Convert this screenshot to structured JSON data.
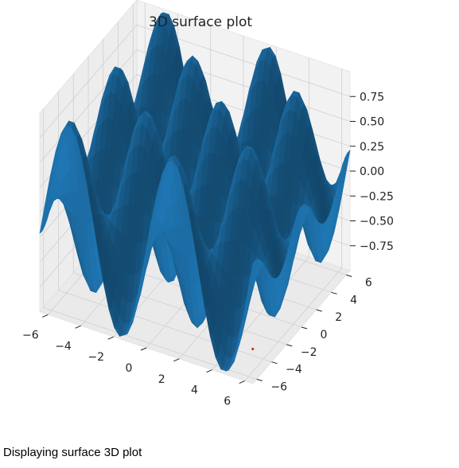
{
  "chart_data": {
    "type": "surface",
    "title": "3D surface plot",
    "function": "sin(x) * cos(y)",
    "x_range": [
      -6.5,
      6.5
    ],
    "y_range": [
      -6.5,
      6.5
    ],
    "z_range": [
      -1,
      1
    ],
    "x_ticks": [
      -6,
      -4,
      -2,
      0,
      2,
      4,
      6
    ],
    "y_ticks": [
      -6,
      -4,
      -2,
      0,
      2,
      4,
      6
    ],
    "z_ticks": [
      -0.75,
      -0.5,
      -0.25,
      0.0,
      0.25,
      0.5,
      0.75
    ],
    "x_tick_labels": [
      "−6",
      "−4",
      "−2",
      "0",
      "2",
      "4",
      "6"
    ],
    "y_tick_labels": [
      "−6",
      "−4",
      "−2",
      "0",
      "2",
      "4",
      "6"
    ],
    "z_tick_labels": [
      "−0.75",
      "−0.50",
      "−0.25",
      "0.00",
      "0.25",
      "0.50",
      "0.75"
    ],
    "surface_color": "#1f77b4",
    "marker": {
      "x": 6.3,
      "y": -6.3,
      "z": -1.0,
      "color": "#d62728"
    },
    "grid": true
  },
  "caption": "Displaying surface 3D plot"
}
